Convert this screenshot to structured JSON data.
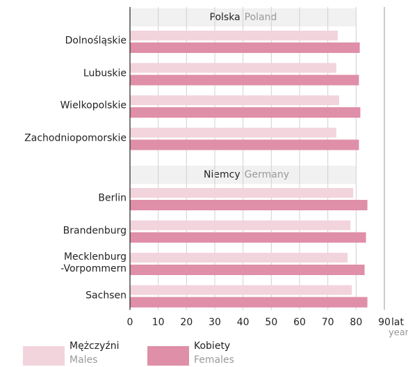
{
  "chart_data": {
    "type": "bar",
    "orientation": "horizontal",
    "xlabel": "lat",
    "xlabel_en": "years",
    "xlim": [
      0,
      90
    ],
    "xticks": [
      0,
      10,
      20,
      30,
      40,
      50,
      60,
      70,
      80,
      90
    ],
    "grid": true,
    "series": [
      {
        "name": "Mężczyźni",
        "name_en": "Males",
        "color": "#f2d4dd"
      },
      {
        "name": "Kobiety",
        "name_en": "Females",
        "color": "#df8fa8"
      }
    ],
    "groups": [
      {
        "title": "Polska",
        "title_en": "Poland",
        "categories": [
          "Dolnośląskie",
          "Lubuskie",
          "Wielkopolskie",
          "Zachodniopomorskie"
        ],
        "values": [
          [
            73.5,
            73,
            74,
            73
          ],
          [
            81.3,
            81,
            81.5,
            81
          ]
        ]
      },
      {
        "title": "Niemcy",
        "title_en": "Germany",
        "categories": [
          "Berlin",
          "Brandenburg",
          "Mecklenburg\n-Vorpommern",
          "Sachsen"
        ],
        "values": [
          [
            79,
            78,
            77,
            78.5
          ],
          [
            84,
            83.5,
            83,
            84
          ]
        ]
      }
    ],
    "legend": "bottom-left"
  }
}
